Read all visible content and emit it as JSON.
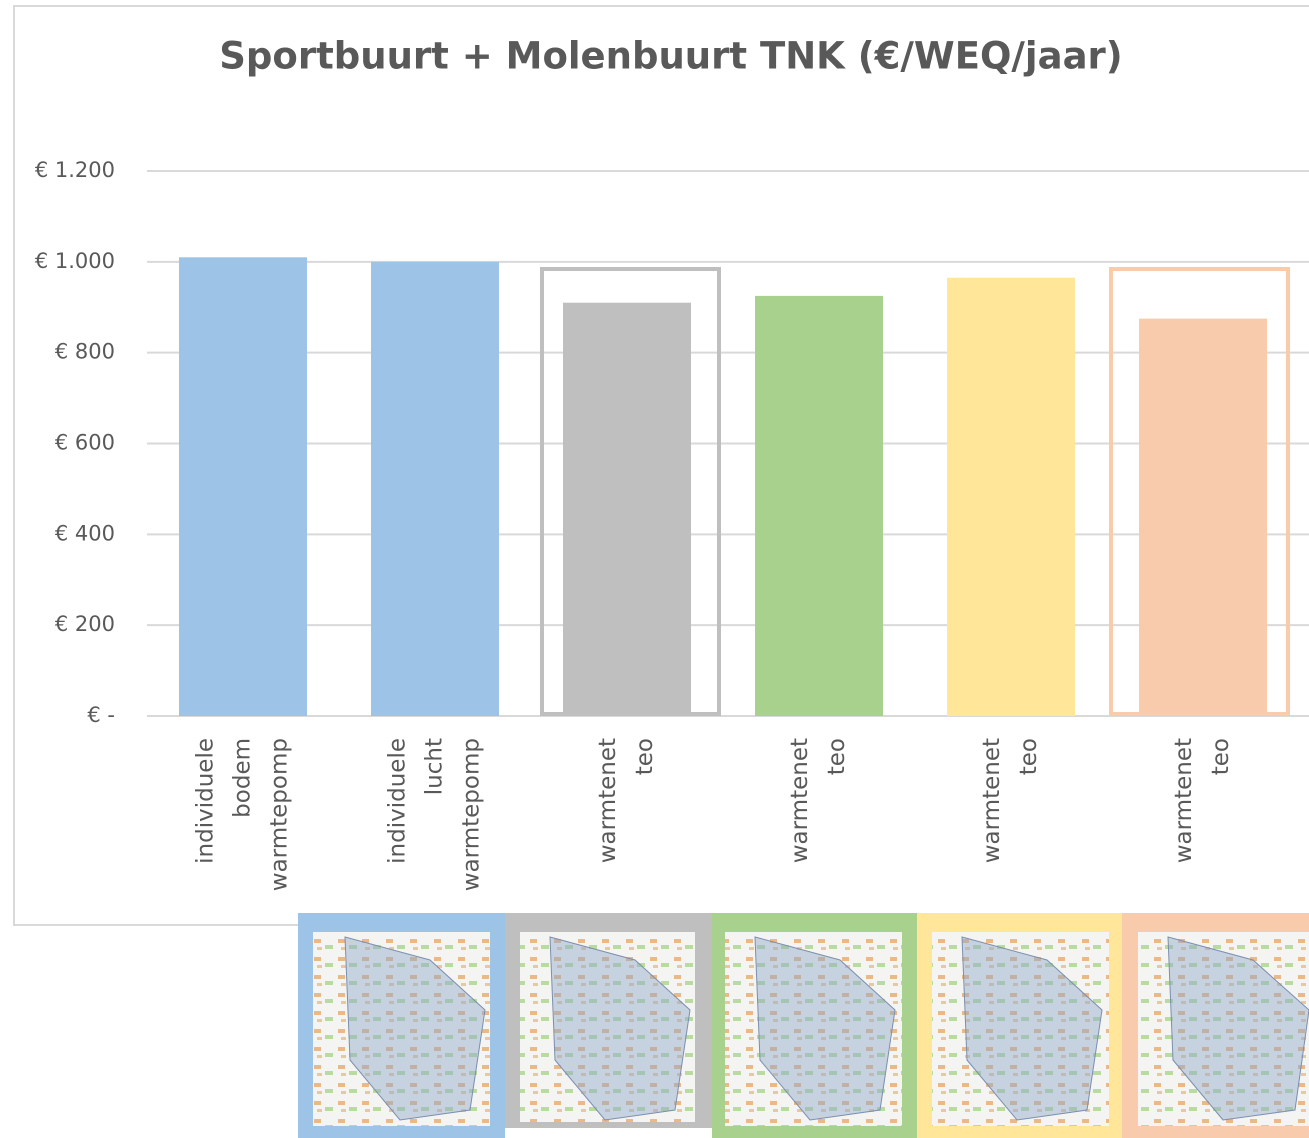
{
  "chart_data": {
    "type": "bar",
    "title": "Sportbuurt + Molenbuurt TNK (€/WEQ/jaar)",
    "categories": [
      [
        "individuele",
        "bodem",
        "warmtepomp"
      ],
      [
        "individuele",
        "lucht",
        "warmtepomp"
      ],
      [
        "warmtenet",
        "teo"
      ],
      [
        "warmtenet",
        "teo"
      ],
      [
        "warmtenet",
        "teo"
      ],
      [
        "warmtenet",
        "teo"
      ]
    ],
    "values": [
      1010,
      1000,
      910,
      925,
      965,
      875
    ],
    "colors": [
      "#9dc3e6",
      "#9dc3e6",
      "#bfbfbf",
      "#a9d18e",
      "#ffe699",
      "#f8cbad"
    ],
    "ylim": [
      0,
      1200
    ],
    "yticks": [
      {
        "value": 0,
        "label": "€ -"
      },
      {
        "value": 200,
        "label": "€ 200"
      },
      {
        "value": 400,
        "label": "€ 400"
      },
      {
        "value": 600,
        "label": "€ 600"
      },
      {
        "value": 800,
        "label": "€ 800"
      },
      {
        "value": 1000,
        "label": "€ 1.000"
      },
      {
        "value": 1200,
        "label": "€ 1.200"
      }
    ],
    "grid": true
  }
}
